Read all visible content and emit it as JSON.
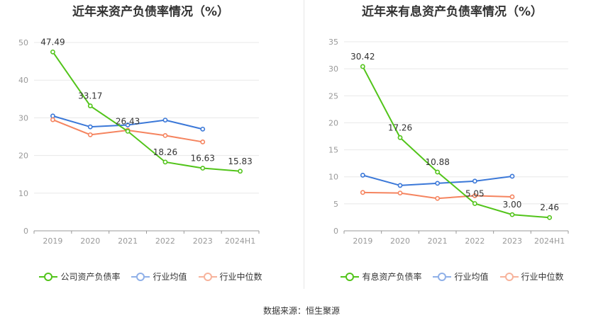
{
  "colors": {
    "green": "#52c41a",
    "blue": "#3b78d8",
    "orange": "#f5845f",
    "grid": "#e8e8e8",
    "axis_text": "#999999"
  },
  "source": "数据来源：恒生聚源",
  "chart_data": [
    {
      "type": "line",
      "title": "近年来资产负债率情况（%）",
      "categories": [
        "2019",
        "2020",
        "2021",
        "2022",
        "2023",
        "2024H1"
      ],
      "ylim": [
        0,
        50
      ],
      "yticks": [
        0,
        10,
        20,
        30,
        40,
        50
      ],
      "series": [
        {
          "name": "公司资产负债率",
          "color": "#52c41a",
          "labels": true,
          "values": [
            47.49,
            33.17,
            26.43,
            18.26,
            16.63,
            15.83
          ]
        },
        {
          "name": "行业均值",
          "color": "#3b78d8",
          "labels": false,
          "values": [
            30.5,
            27.6,
            28.1,
            29.4,
            27.0,
            null
          ]
        },
        {
          "name": "行业中位数",
          "color": "#f5845f",
          "labels": false,
          "values": [
            29.5,
            25.5,
            26.7,
            25.3,
            23.6,
            null
          ]
        }
      ]
    },
    {
      "type": "line",
      "title": "近年来有息资产负债率情况（%）",
      "categories": [
        "2019",
        "2020",
        "2021",
        "2022",
        "2023",
        "2024H1"
      ],
      "ylim": [
        0,
        35
      ],
      "yticks": [
        0,
        5,
        10,
        15,
        20,
        25,
        30,
        35
      ],
      "series": [
        {
          "name": "有息资产负债率",
          "color": "#52c41a",
          "labels": true,
          "values": [
            30.42,
            17.26,
            10.88,
            5.05,
            3.0,
            2.46
          ]
        },
        {
          "name": "行业均值",
          "color": "#3b78d8",
          "labels": false,
          "values": [
            10.3,
            8.4,
            8.8,
            9.2,
            10.1,
            null
          ]
        },
        {
          "name": "行业中位数",
          "color": "#f5845f",
          "labels": false,
          "values": [
            7.1,
            7.0,
            6.0,
            6.5,
            6.3,
            null
          ]
        }
      ]
    }
  ]
}
